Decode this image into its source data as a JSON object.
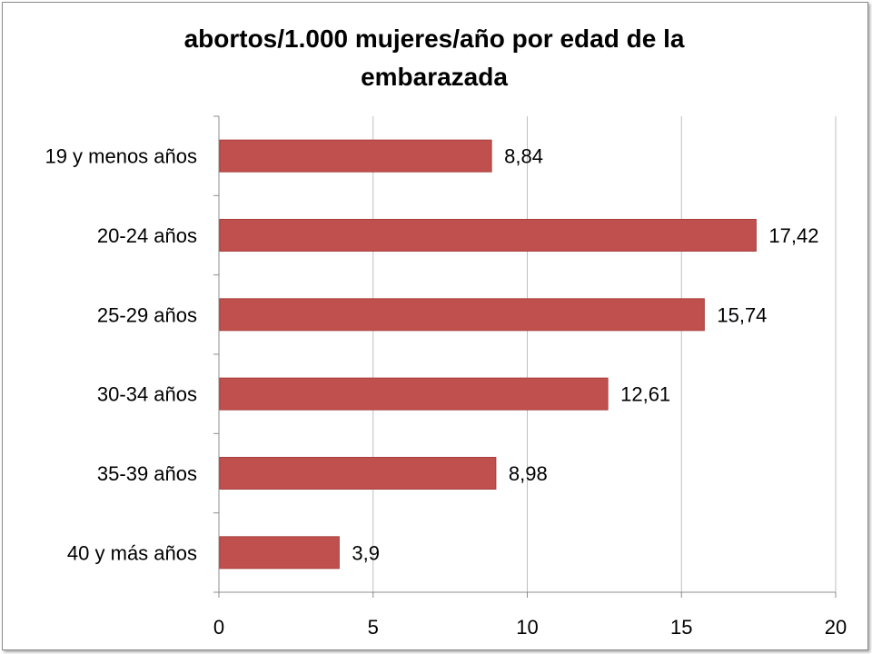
{
  "chart_data": {
    "type": "bar",
    "orientation": "horizontal",
    "title_lines": [
      "abortos/1.000 mujeres/año por edad de la",
      "embarazada"
    ],
    "categories": [
      "19 y menos años",
      "20-24 años",
      "25-29 años",
      "30-34 años",
      "35-39 años",
      "40 y más años"
    ],
    "values": [
      8.84,
      17.42,
      15.74,
      12.61,
      8.98,
      3.9
    ],
    "data_labels": [
      "8,84",
      "17,42",
      "15,74",
      "12,61",
      "8,98",
      "3,9"
    ],
    "xlim": [
      0,
      20
    ],
    "xticks": [
      0,
      5,
      10,
      15,
      20
    ],
    "xtick_labels": [
      "0",
      "5",
      "10",
      "15",
      "20"
    ],
    "xlabel": "",
    "ylabel": "",
    "grid": "vertical",
    "legend": "none",
    "bar_color": "#c0504d",
    "bar_border_color": "#a8403d",
    "grid_color": "#bfbfbf",
    "axis_color": "#8c8c8c"
  }
}
